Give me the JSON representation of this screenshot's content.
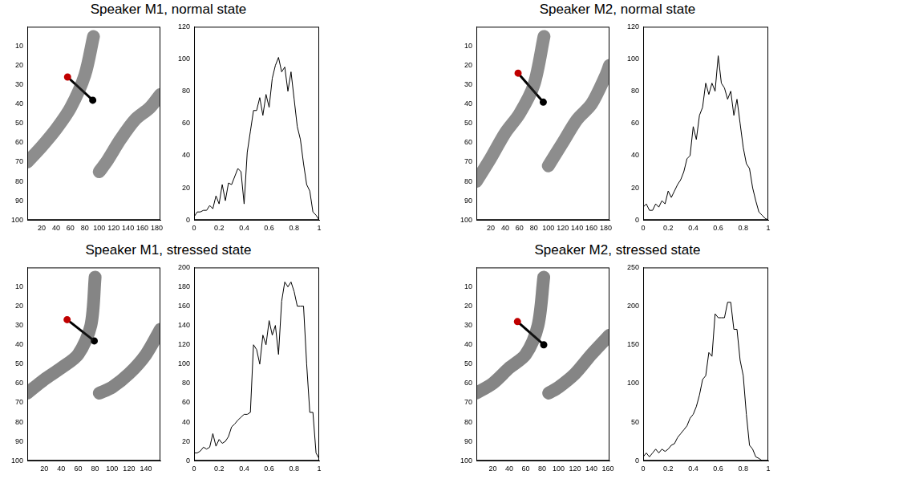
{
  "chart_data": [
    {
      "title": "Speaker M1, normal state",
      "charts": [
        {
          "type": "image",
          "xlim": [
            0,
            185
          ],
          "xticks": [
            20,
            40,
            60,
            80,
            100,
            120,
            140,
            160,
            180
          ],
          "ylim": [
            100,
            0
          ],
          "yticks": [
            10,
            20,
            30,
            40,
            50,
            60,
            70,
            80,
            90,
            100
          ],
          "grid": false,
          "band": [
            {
              "x": [
                0,
                20,
                40,
                60,
                80,
                92
              ],
              "y": [
                70,
                62,
                53,
                42,
                25,
                5
              ]
            },
            {
              "x": [
                100,
                110,
                130,
                150,
                170,
                185
              ],
              "y": [
                75,
                70,
                58,
                48,
                42,
                35
              ]
            }
          ],
          "color": "#303030",
          "line": {
            "x": [
              56,
              91
            ],
            "y": [
              26,
              38
            ],
            "colors": [
              "#c00000",
              "#000000"
            ]
          }
        },
        {
          "type": "line",
          "xlim": [
            0,
            1
          ],
          "xticks": [
            0,
            0.2,
            0.4,
            0.6,
            0.8,
            1
          ],
          "ylim": [
            0,
            120
          ],
          "yticks": [
            0,
            20,
            40,
            60,
            80,
            100,
            120
          ],
          "grid": false,
          "color": "#000000",
          "x": [
            0,
            0.025,
            0.05,
            0.075,
            0.1,
            0.125,
            0.15,
            0.175,
            0.2,
            0.225,
            0.25,
            0.275,
            0.3,
            0.325,
            0.35,
            0.375,
            0.4,
            0.425,
            0.45,
            0.475,
            0.5,
            0.525,
            0.55,
            0.575,
            0.6,
            0.625,
            0.65,
            0.675,
            0.7,
            0.725,
            0.75,
            0.775,
            0.8,
            0.825,
            0.85,
            0.875,
            0.9,
            0.925,
            0.95,
            0.975,
            1
          ],
          "values": [
            2,
            5,
            5,
            6,
            6,
            9,
            7,
            15,
            10,
            22,
            12,
            23,
            22,
            27,
            32,
            30,
            10,
            42,
            55,
            68,
            68,
            76,
            65,
            78,
            70,
            88,
            96,
            101,
            92,
            95,
            80,
            92,
            75,
            58,
            50,
            35,
            22,
            18,
            5,
            3,
            0
          ]
        }
      ]
    },
    {
      "title": "Speaker M2, normal state",
      "charts": [
        {
          "type": "image",
          "xlim": [
            0,
            185
          ],
          "xticks": [
            20,
            40,
            60,
            80,
            100,
            120,
            140,
            160,
            180
          ],
          "ylim": [
            100,
            0
          ],
          "yticks": [
            10,
            20,
            30,
            40,
            50,
            60,
            70,
            80,
            90,
            100
          ],
          "grid": false,
          "band": [
            {
              "x": [
                0,
                20,
                40,
                60,
                80,
                94
              ],
              "y": [
                80,
                68,
                55,
                45,
                30,
                5
              ]
            },
            {
              "x": [
                100,
                120,
                140,
                160,
                180,
                185
              ],
              "y": [
                72,
                60,
                48,
                40,
                25,
                20
              ]
            }
          ],
          "color": "#303030",
          "line": {
            "x": [
              58,
              93
            ],
            "y": [
              24,
              39
            ],
            "colors": [
              "#c00000",
              "#000000"
            ]
          }
        },
        {
          "type": "line",
          "xlim": [
            0,
            1
          ],
          "xticks": [
            0,
            0.2,
            0.4,
            0.6,
            0.8,
            1
          ],
          "ylim": [
            0,
            120
          ],
          "yticks": [
            0,
            20,
            40,
            60,
            80,
            100,
            120
          ],
          "grid": false,
          "color": "#000000",
          "x": [
            0,
            0.025,
            0.05,
            0.075,
            0.1,
            0.125,
            0.15,
            0.175,
            0.2,
            0.225,
            0.25,
            0.275,
            0.3,
            0.325,
            0.35,
            0.375,
            0.4,
            0.425,
            0.45,
            0.475,
            0.5,
            0.525,
            0.55,
            0.575,
            0.6,
            0.625,
            0.65,
            0.675,
            0.7,
            0.725,
            0.75,
            0.775,
            0.8,
            0.825,
            0.85,
            0.875,
            0.9,
            0.925,
            0.95,
            0.975,
            1
          ],
          "values": [
            8,
            10,
            6,
            6,
            10,
            8,
            12,
            10,
            18,
            14,
            18,
            22,
            25,
            30,
            38,
            40,
            58,
            50,
            65,
            70,
            85,
            78,
            85,
            80,
            102,
            85,
            82,
            75,
            80,
            65,
            75,
            60,
            45,
            35,
            32,
            20,
            12,
            5,
            3,
            1,
            0
          ]
        }
      ]
    },
    {
      "title": "Speaker M1, stressed state",
      "charts": [
        {
          "type": "image",
          "xlim": [
            0,
            157
          ],
          "xticks": [
            20,
            40,
            60,
            80,
            100,
            120,
            140
          ],
          "ylim": [
            100,
            0
          ],
          "yticks": [
            10,
            20,
            30,
            40,
            50,
            60,
            70,
            80,
            90,
            100
          ],
          "grid": false,
          "band": [
            {
              "x": [
                0,
                20,
                40,
                60,
                75,
                80
              ],
              "y": [
                65,
                58,
                52,
                45,
                30,
                5
              ]
            },
            {
              "x": [
                85,
                100,
                120,
                140,
                157
              ],
              "y": [
                65,
                62,
                55,
                45,
                32
              ]
            }
          ],
          "color": "#202020",
          "line": {
            "x": [
              47,
              79
            ],
            "y": [
              27,
              38
            ],
            "colors": [
              "#c00000",
              "#000000"
            ]
          }
        },
        {
          "type": "line",
          "xlim": [
            0,
            1
          ],
          "xticks": [
            0,
            0.2,
            0.4,
            0.6,
            0.8,
            1
          ],
          "ylim": [
            0,
            200
          ],
          "yticks": [
            0,
            20,
            40,
            60,
            80,
            100,
            120,
            140,
            160,
            180,
            200
          ],
          "grid": false,
          "color": "#000000",
          "x": [
            0,
            0.025,
            0.05,
            0.075,
            0.1,
            0.125,
            0.15,
            0.175,
            0.2,
            0.225,
            0.25,
            0.275,
            0.3,
            0.325,
            0.35,
            0.375,
            0.4,
            0.425,
            0.45,
            0.475,
            0.5,
            0.525,
            0.55,
            0.575,
            0.6,
            0.625,
            0.65,
            0.675,
            0.7,
            0.725,
            0.75,
            0.775,
            0.8,
            0.825,
            0.85,
            0.875,
            0.9,
            0.925,
            0.95,
            0.975,
            1
          ],
          "values": [
            8,
            8,
            10,
            14,
            12,
            14,
            28,
            15,
            22,
            18,
            20,
            25,
            35,
            38,
            42,
            45,
            48,
            48,
            50,
            120,
            115,
            100,
            130,
            120,
            145,
            130,
            140,
            110,
            165,
            185,
            180,
            185,
            175,
            160,
            160,
            160,
            100,
            50,
            50,
            8,
            2
          ]
        }
      ]
    },
    {
      "title": "Speaker M2, stressed state",
      "charts": [
        {
          "type": "image",
          "xlim": [
            0,
            162
          ],
          "xticks": [
            20,
            40,
            60,
            80,
            100,
            120,
            140,
            160
          ],
          "ylim": [
            100,
            0
          ],
          "yticks": [
            10,
            20,
            30,
            40,
            50,
            60,
            70,
            80,
            90,
            100
          ],
          "grid": false,
          "band": [
            {
              "x": [
                0,
                20,
                40,
                60,
                75,
                82
              ],
              "y": [
                65,
                60,
                52,
                45,
                30,
                5
              ]
            },
            {
              "x": [
                88,
                100,
                120,
                140,
                162
              ],
              "y": [
                65,
                62,
                55,
                45,
                35
              ]
            }
          ],
          "color": "#202020",
          "line": {
            "x": [
              50,
              82
            ],
            "y": [
              28,
              40
            ],
            "colors": [
              "#c00000",
              "#000000"
            ]
          }
        },
        {
          "type": "line",
          "xlim": [
            0,
            1
          ],
          "xticks": [
            0,
            0.2,
            0.4,
            0.6,
            0.8,
            1
          ],
          "ylim": [
            0,
            250
          ],
          "yticks": [
            0,
            50,
            100,
            150,
            200,
            250
          ],
          "grid": false,
          "color": "#000000",
          "x": [
            0,
            0.025,
            0.05,
            0.075,
            0.1,
            0.125,
            0.15,
            0.175,
            0.2,
            0.225,
            0.25,
            0.275,
            0.3,
            0.325,
            0.35,
            0.375,
            0.4,
            0.425,
            0.45,
            0.475,
            0.5,
            0.525,
            0.55,
            0.575,
            0.6,
            0.625,
            0.65,
            0.675,
            0.7,
            0.725,
            0.75,
            0.775,
            0.8,
            0.825,
            0.85,
            0.875,
            0.9,
            0.925,
            0.95,
            0.975,
            1
          ],
          "values": [
            5,
            10,
            5,
            10,
            15,
            10,
            15,
            12,
            15,
            20,
            22,
            30,
            35,
            40,
            45,
            55,
            60,
            70,
            85,
            105,
            110,
            140,
            135,
            190,
            185,
            185,
            185,
            205,
            205,
            170,
            170,
            130,
            110,
            60,
            20,
            15,
            5,
            3,
            0,
            0,
            0
          ]
        }
      ]
    }
  ]
}
